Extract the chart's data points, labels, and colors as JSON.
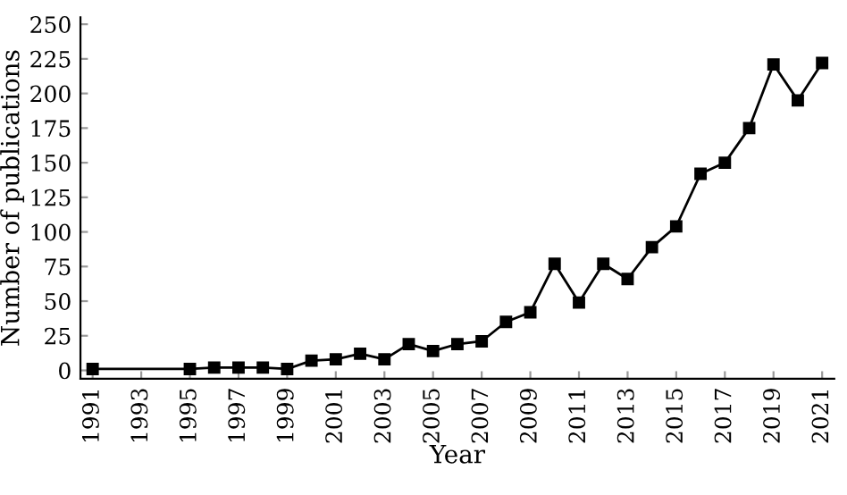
{
  "chart_data": {
    "type": "line",
    "xlabel": "Year",
    "ylabel": "Number of publications",
    "x": [
      1991,
      1995,
      1996,
      1997,
      1998,
      1999,
      2000,
      2001,
      2002,
      2003,
      2004,
      2005,
      2006,
      2007,
      2008,
      2009,
      2010,
      2011,
      2012,
      2013,
      2014,
      2015,
      2016,
      2017,
      2018,
      2019,
      2020,
      2021
    ],
    "series": [
      {
        "color": "#000000",
        "values": [
          1,
          1,
          2,
          2,
          2,
          1,
          7,
          8,
          12,
          8,
          19,
          14,
          19,
          21,
          35,
          42,
          77,
          49,
          77,
          66,
          89,
          104,
          142,
          150,
          175,
          221,
          195,
          222
        ]
      }
    ],
    "xlim": [
      1990.5,
      2021.5
    ],
    "xticks": [
      1991,
      1993,
      1995,
      1997,
      1999,
      2001,
      2003,
      2005,
      2007,
      2009,
      2011,
      2013,
      2015,
      2017,
      2019,
      2021
    ],
    "ylim": [
      -6,
      255
    ],
    "yticks": [
      0,
      25,
      50,
      75,
      100,
      125,
      150,
      175,
      200,
      225,
      250
    ],
    "marker": "square",
    "line_style": "solid",
    "grid": false,
    "legend": false
  }
}
